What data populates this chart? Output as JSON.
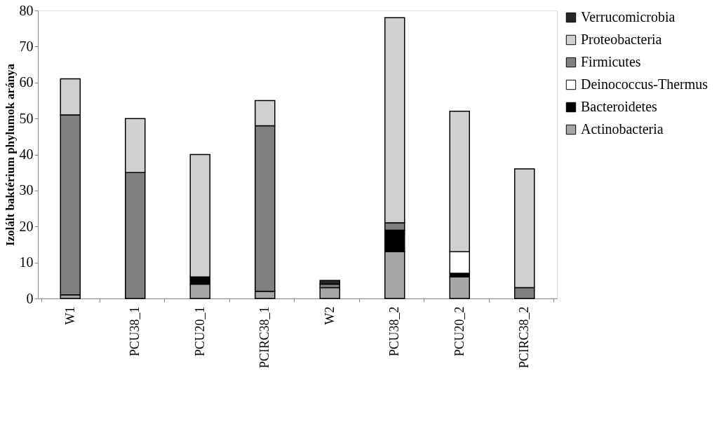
{
  "chart_data": {
    "type": "bar",
    "stacked": true,
    "ylabel": "Izolált baktérium phylumok aránya",
    "categories": [
      "W1",
      "PCU38_1",
      "PCU20_1",
      "PCIRC38_1",
      "W2",
      "PCU38_2",
      "PCU20_2",
      "PCIRC38_2"
    ],
    "series": [
      {
        "name": "Actinobacteria",
        "color": "#a6a6a6",
        "values": [
          1,
          null,
          4,
          2,
          3,
          13,
          6,
          null
        ]
      },
      {
        "name": "Bacteroidetes",
        "color": "#000000",
        "values": [
          null,
          null,
          2,
          null,
          null,
          6,
          1,
          null
        ]
      },
      {
        "name": "Deinococcus-Thermus",
        "color": "#ffffff",
        "values": [
          null,
          null,
          null,
          null,
          null,
          null,
          6,
          null
        ]
      },
      {
        "name": "Firmicutes",
        "color": "#808080",
        "values": [
          50,
          35,
          null,
          46,
          1,
          2,
          null,
          3
        ]
      },
      {
        "name": "Proteobacteria",
        "color": "#d0d0d0",
        "values": [
          10,
          15,
          34,
          7,
          null,
          57,
          39,
          33
        ]
      },
      {
        "name": "Verrucomicrobia",
        "color": "#262626",
        "values": [
          null,
          null,
          null,
          null,
          1,
          null,
          null,
          null
        ]
      }
    ],
    "ylim": [
      0,
      80
    ],
    "yticks": [
      0,
      10,
      20,
      30,
      40,
      50,
      60,
      70,
      80
    ],
    "grid": false,
    "legend": "right"
  }
}
